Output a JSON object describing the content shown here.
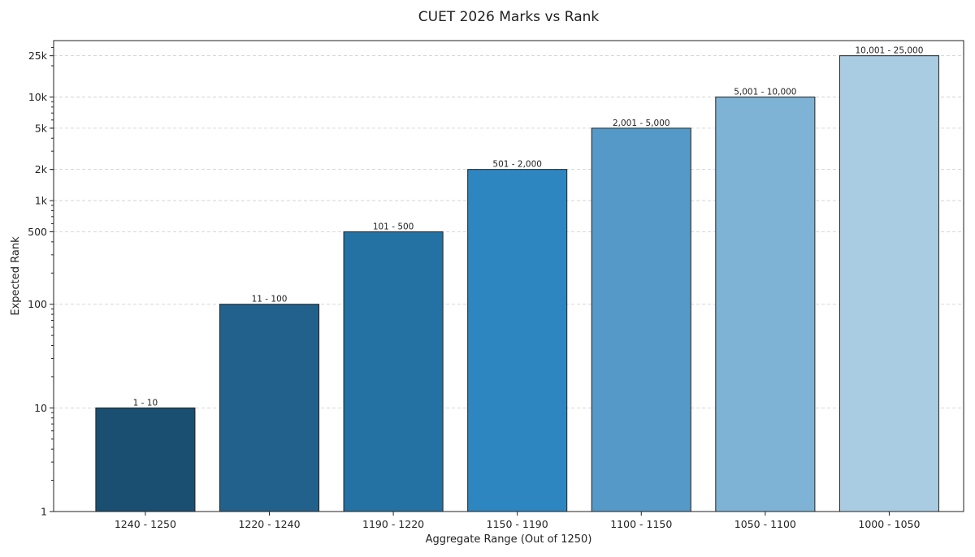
{
  "chart_data": {
    "type": "bar",
    "title": "CUET 2026 Marks vs Rank",
    "xlabel": "Aggregate Range (Out of 1250)",
    "ylabel": "Expected Rank",
    "y_scale": "log",
    "ylim": [
      1,
      35000
    ],
    "grid": "y-dashed",
    "categories": [
      "1240 - 1250",
      "1220 - 1240",
      "1190 - 1220",
      "1150 - 1190",
      "1100 - 1150",
      "1050 - 1100",
      "1000 - 1050"
    ],
    "values": [
      10,
      100,
      500,
      2000,
      5000,
      10000,
      25000
    ],
    "data_labels": [
      "1 - 10",
      "11 - 100",
      "101 - 500",
      "501 - 2,000",
      "2,001 - 5,000",
      "5,001 - 10,000",
      "10,001 - 25,000"
    ],
    "bar_colors": [
      "#1b4f72",
      "#21618c",
      "#2471a3",
      "#2e86c1",
      "#5499c7",
      "#7fb3d5",
      "#a9cce3"
    ],
    "y_ticks": [
      {
        "value": 1,
        "label": "1"
      },
      {
        "value": 10,
        "label": "10"
      },
      {
        "value": 100,
        "label": "100"
      },
      {
        "value": 500,
        "label": "500"
      },
      {
        "value": 1000,
        "label": "1k"
      },
      {
        "value": 2000,
        "label": "2k"
      },
      {
        "value": 5000,
        "label": "5k"
      },
      {
        "value": 10000,
        "label": "10k"
      },
      {
        "value": 25000,
        "label": "25k"
      }
    ]
  }
}
